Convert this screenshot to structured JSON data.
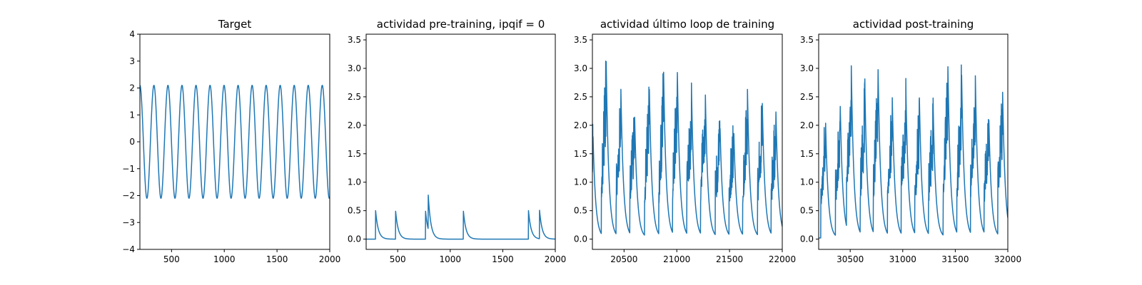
{
  "chart_data": [
    {
      "type": "line",
      "title": "Target",
      "xlim": [
        200,
        2000
      ],
      "ylim": [
        -4,
        4
      ],
      "xticks": [
        500,
        1000,
        1500,
        2000
      ],
      "yticks": [
        -4,
        -3,
        -2,
        -1,
        0,
        1,
        2,
        3,
        4
      ],
      "series": [
        {
          "color": "#1f77b4",
          "kind": "sine",
          "amplitude": 2.1,
          "period": 133,
          "phase_x": 200,
          "starts_at_peak": true
        }
      ]
    },
    {
      "type": "line",
      "title": "actividad pre-training, ipqif = 0",
      "xlim": [
        200,
        2000
      ],
      "ylim": [
        -0.18,
        3.6
      ],
      "xticks": [
        500,
        1000,
        1500,
        2000
      ],
      "yticks": [
        0.0,
        0.5,
        1.0,
        1.5,
        2.0,
        2.5,
        3.0,
        3.5
      ],
      "series": [
        {
          "color": "#1f77b4",
          "kind": "spikes",
          "decay": 25,
          "baseline": 0.0,
          "spikes": [
            {
              "x": 290,
              "h": 0.5
            },
            {
              "x": 480,
              "h": 0.5
            },
            {
              "x": 765,
              "h": 0.5
            },
            {
              "x": 790,
              "h": 0.62
            },
            {
              "x": 1125,
              "h": 0.5
            },
            {
              "x": 1745,
              "h": 0.5
            },
            {
              "x": 1850,
              "h": 0.5
            }
          ]
        }
      ]
    },
    {
      "type": "line",
      "title": "actividad último loop de training",
      "xlim": [
        20200,
        22000
      ],
      "ylim": [
        -0.18,
        3.6
      ],
      "xticks": [
        20500,
        21000,
        21500,
        22000
      ],
      "yticks": [
        0.0,
        0.5,
        1.0,
        1.5,
        2.0,
        2.5,
        3.0,
        3.5
      ],
      "series": [
        {
          "color": "#1f77b4",
          "kind": "bursts",
          "decay": 25,
          "baseline": 0.02,
          "bursts": [
            {
              "x": 20205,
              "h": 1.85
            },
            {
              "x": 20330,
              "h": 3.15
            },
            {
              "x": 20470,
              "h": 2.6
            },
            {
              "x": 20600,
              "h": 2.15
            },
            {
              "x": 20740,
              "h": 2.6
            },
            {
              "x": 20875,
              "h": 2.9
            },
            {
              "x": 21005,
              "h": 2.95
            },
            {
              "x": 21140,
              "h": 2.55
            },
            {
              "x": 21270,
              "h": 2.6
            },
            {
              "x": 21410,
              "h": 1.95
            },
            {
              "x": 21540,
              "h": 1.9
            },
            {
              "x": 21670,
              "h": 2.6
            },
            {
              "x": 21810,
              "h": 2.45
            },
            {
              "x": 21940,
              "h": 2.2
            }
          ]
        }
      ]
    },
    {
      "type": "line",
      "title": "actividad post-training",
      "xlim": [
        30200,
        32000
      ],
      "ylim": [
        -0.18,
        3.6
      ],
      "xticks": [
        30500,
        31000,
        31500,
        32000
      ],
      "yticks": [
        0.0,
        0.5,
        1.0,
        1.5,
        2.0,
        2.5,
        3.0,
        3.5
      ],
      "series": [
        {
          "color": "#1f77b4",
          "kind": "bursts",
          "decay": 25,
          "baseline": 0.02,
          "bursts": [
            {
              "x": 30265,
              "h": 2.1
            },
            {
              "x": 30405,
              "h": 2.35
            },
            {
              "x": 30510,
              "h": 3.05
            },
            {
              "x": 30640,
              "h": 2.6
            },
            {
              "x": 30765,
              "h": 3.0
            },
            {
              "x": 30900,
              "h": 2.5
            },
            {
              "x": 31030,
              "h": 2.6
            },
            {
              "x": 31160,
              "h": 2.3
            },
            {
              "x": 31290,
              "h": 2.25
            },
            {
              "x": 31430,
              "h": 3.0
            },
            {
              "x": 31560,
              "h": 2.9
            },
            {
              "x": 31690,
              "h": 2.95
            },
            {
              "x": 31820,
              "h": 2.05
            },
            {
              "x": 31950,
              "h": 2.6
            }
          ]
        }
      ]
    }
  ]
}
